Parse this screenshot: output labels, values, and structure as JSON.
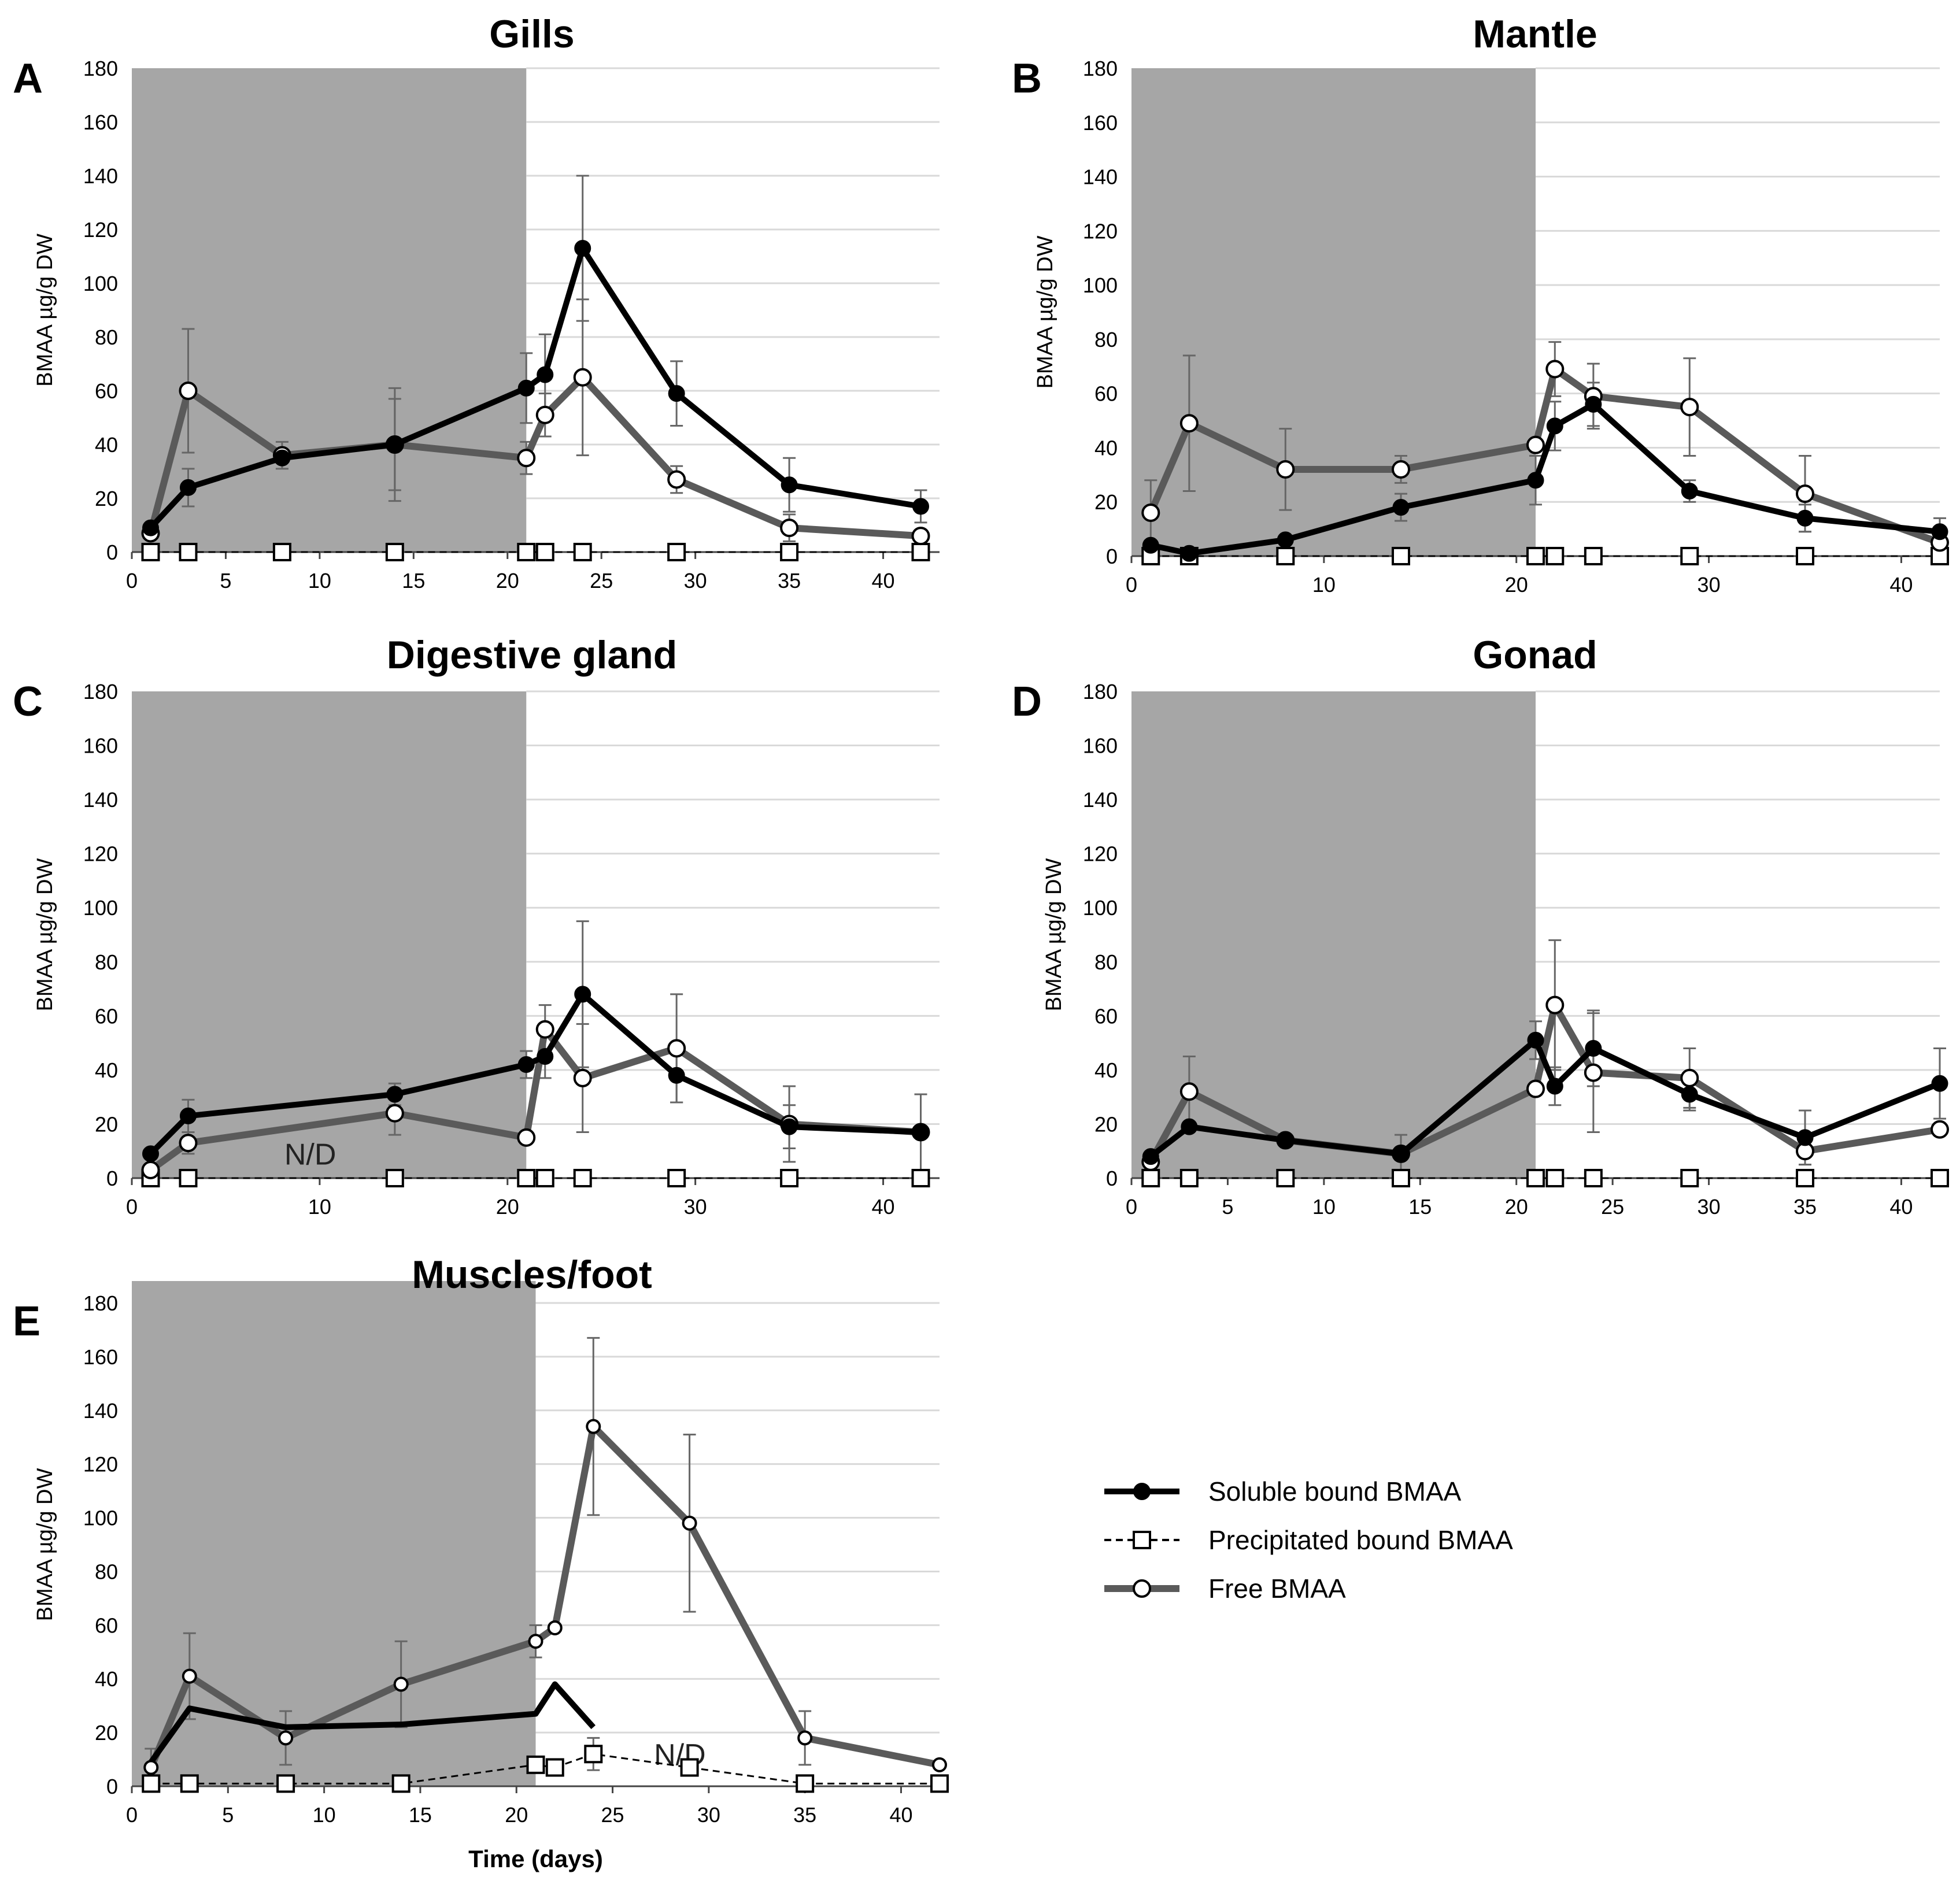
{
  "chart_data": [
    {
      "id": "A",
      "type": "line",
      "panel_letter": "A",
      "title": "Gills",
      "ylabel": "BMAA µg/g DW",
      "xlabel": "",
      "ylim": [
        0,
        180
      ],
      "yticks": [
        0,
        20,
        40,
        60,
        80,
        100,
        120,
        140,
        160,
        180
      ],
      "xlim": [
        0,
        43
      ],
      "xticks": [
        0,
        5,
        10,
        15,
        20,
        25,
        30,
        35,
        40
      ],
      "shaded_range": [
        0,
        21
      ],
      "series": [
        {
          "name": "Soluble bound BMAA",
          "style": "soluble",
          "x": [
            1,
            3,
            8,
            14,
            21,
            22,
            24,
            29,
            35,
            42
          ],
          "values": [
            9,
            24,
            35,
            40,
            61,
            66,
            113,
            59,
            25,
            17
          ],
          "err": [
            0,
            7,
            0,
            21,
            13,
            15,
            27,
            12,
            10,
            6
          ]
        },
        {
          "name": "Precipitated bound BMAA",
          "style": "precip",
          "x": [
            1,
            3,
            8,
            14,
            21,
            22,
            24,
            29,
            35,
            42
          ],
          "values": [
            0,
            0,
            0,
            0,
            0,
            0,
            0,
            0,
            0,
            0
          ],
          "err": [
            0,
            0,
            0,
            0,
            0,
            0,
            0,
            0,
            0,
            0
          ]
        },
        {
          "name": "Free BMAA",
          "style": "free",
          "x": [
            1,
            3,
            8,
            14,
            21,
            22,
            24,
            29,
            35,
            42
          ],
          "values": [
            7,
            60,
            36,
            40,
            35,
            51,
            65,
            27,
            9,
            6
          ],
          "err": [
            0,
            23,
            5,
            17,
            6,
            8,
            29,
            5,
            5,
            0
          ]
        }
      ]
    },
    {
      "id": "B",
      "type": "line",
      "panel_letter": "B",
      "title": "Mantle",
      "ylabel": "BMAA µg/g DW",
      "xlabel": "",
      "ylim": [
        0,
        180
      ],
      "yticks": [
        0,
        20,
        40,
        60,
        80,
        100,
        120,
        140,
        160,
        180
      ],
      "xlim": [
        0,
        42
      ],
      "xticks": [
        0,
        10,
        20,
        30,
        40
      ],
      "shaded_range": [
        0,
        21
      ],
      "series": [
        {
          "name": "Soluble bound BMAA",
          "style": "soluble",
          "x": [
            1,
            3,
            8,
            14,
            21,
            22,
            24,
            29,
            35,
            42
          ],
          "values": [
            4,
            1,
            6,
            18,
            28,
            48,
            56,
            24,
            14,
            9
          ],
          "err": [
            0,
            0,
            0,
            5,
            9,
            9,
            8,
            4,
            5,
            5
          ]
        },
        {
          "name": "Precipitated bound BMAA",
          "style": "precip",
          "x": [
            1,
            3,
            8,
            14,
            21,
            22,
            24,
            29,
            35,
            42
          ],
          "values": [
            0,
            0,
            0,
            0,
            0,
            0,
            0,
            0,
            0,
            0
          ],
          "err": [
            0,
            0,
            0,
            0,
            0,
            0,
            0,
            0,
            0,
            0
          ]
        },
        {
          "name": "Free BMAA",
          "style": "free",
          "x": [
            1,
            3,
            8,
            14,
            21,
            22,
            24,
            29,
            35,
            42
          ],
          "values": [
            16,
            49,
            32,
            32,
            41,
            69,
            59,
            55,
            23,
            5
          ],
          "err": [
            12,
            25,
            15,
            5,
            0,
            10,
            12,
            18,
            14,
            0
          ]
        }
      ]
    },
    {
      "id": "C",
      "type": "line",
      "panel_letter": "C",
      "title": "Digestive gland",
      "ylabel": "BMAA µg/g DW",
      "xlabel": "",
      "ylim": [
        0,
        180
      ],
      "yticks": [
        0,
        20,
        40,
        60,
        80,
        100,
        120,
        140,
        160,
        180
      ],
      "xlim": [
        0,
        43
      ],
      "xticks": [
        0,
        10,
        20,
        30,
        40
      ],
      "shaded_range": [
        0,
        21
      ],
      "annotation": "N/D",
      "annotation_at": [
        9.5,
        5
      ],
      "series": [
        {
          "name": "Soluble bound BMAA",
          "style": "soluble",
          "x": [
            1,
            3,
            14,
            21,
            22,
            24,
            29,
            35,
            42
          ],
          "values": [
            9,
            23,
            31,
            42,
            45,
            68,
            38,
            19,
            17
          ],
          "err": [
            0,
            6,
            4,
            5,
            8,
            27,
            10,
            8,
            14
          ]
        },
        {
          "name": "Precipitated bound BMAA",
          "style": "precip",
          "x": [
            1,
            3,
            14,
            21,
            22,
            24,
            29,
            35,
            42
          ],
          "values": [
            0,
            0,
            0,
            0,
            0,
            0,
            0,
            0,
            0
          ],
          "err": [
            0,
            0,
            0,
            0,
            0,
            0,
            0,
            0,
            0
          ]
        },
        {
          "name": "Free BMAA",
          "style": "free",
          "x": [
            1,
            3,
            14,
            21,
            22,
            24,
            29,
            35,
            42
          ],
          "values": [
            3,
            13,
            24,
            15,
            55,
            37,
            48,
            20,
            17
          ],
          "err": [
            0,
            4,
            8,
            0,
            9,
            20,
            20,
            14,
            0
          ]
        }
      ]
    },
    {
      "id": "D",
      "type": "line",
      "panel_letter": "D",
      "title": "Gonad",
      "ylabel": "BMAA µg/g DW",
      "xlabel": "",
      "ylim": [
        0,
        180
      ],
      "yticks": [
        0,
        20,
        40,
        60,
        80,
        100,
        120,
        140,
        160,
        180
      ],
      "xlim": [
        0,
        42
      ],
      "xticks": [
        0,
        5,
        10,
        15,
        20,
        25,
        30,
        35,
        40
      ],
      "shaded_range": [
        0,
        21
      ],
      "series": [
        {
          "name": "Soluble bound BMAA",
          "style": "soluble",
          "x": [
            1,
            3,
            8,
            14,
            21,
            22,
            24,
            29,
            35,
            42
          ],
          "values": [
            8,
            19,
            14,
            9,
            51,
            34,
            48,
            31,
            15,
            35
          ],
          "err": [
            0,
            0,
            0,
            0,
            7,
            7,
            14,
            6,
            10,
            13
          ]
        },
        {
          "name": "Precipitated bound BMAA",
          "style": "precip",
          "x": [
            1,
            3,
            8,
            14,
            21,
            22,
            24,
            29,
            35,
            42
          ],
          "values": [
            0,
            0,
            0,
            0,
            0,
            0,
            0,
            0,
            0,
            0
          ],
          "err": [
            0,
            0,
            0,
            0,
            0,
            0,
            0,
            0,
            0,
            0
          ]
        },
        {
          "name": "Free BMAA",
          "style": "free",
          "x": [
            1,
            3,
            8,
            14,
            21,
            22,
            24,
            29,
            35,
            42
          ],
          "values": [
            6,
            32,
            14,
            9,
            33,
            64,
            39,
            37,
            10,
            18
          ],
          "err": [
            0,
            13,
            0,
            7,
            0,
            24,
            22,
            11,
            5,
            0
          ]
        }
      ]
    },
    {
      "id": "E",
      "type": "line",
      "panel_letter": "E",
      "title": "Muscles/foot",
      "ylabel": "BMAA µg/g DW",
      "xlabel": "Time (days)",
      "ylim": [
        0,
        180
      ],
      "yticks": [
        0,
        20,
        40,
        60,
        80,
        100,
        120,
        140,
        160,
        180
      ],
      "xlim": [
        0,
        42
      ],
      "xticks": [
        0,
        5,
        10,
        15,
        20,
        25,
        30,
        35,
        40
      ],
      "shaded_range": [
        0,
        21
      ],
      "annotation": "N/D",
      "annotation_at": [
        28.5,
        8
      ],
      "series": [
        {
          "name": "Soluble bound BMAA",
          "style": "soluble",
          "x": [
            1,
            3,
            8,
            14,
            21,
            22,
            24
          ],
          "values": [
            9,
            29,
            22,
            23,
            27,
            38,
            22
          ],
          "err": [
            0,
            0,
            0,
            0,
            0,
            0,
            0
          ]
        },
        {
          "name": "Precipitated bound BMAA",
          "style": "precip",
          "x": [
            1,
            3,
            8,
            14,
            21,
            22,
            24,
            29,
            35,
            42
          ],
          "values": [
            1,
            1,
            1,
            1,
            8,
            7,
            12,
            7,
            1,
            1
          ],
          "err": [
            0,
            0,
            0,
            0,
            0,
            0,
            6,
            0,
            0,
            0
          ]
        },
        {
          "name": "Free BMAA",
          "style": "free",
          "x": [
            1,
            3,
            8,
            14,
            21,
            22,
            24,
            29,
            35,
            42
          ],
          "values": [
            7,
            41,
            18,
            38,
            54,
            59,
            134,
            98,
            18,
            8
          ],
          "err": [
            7,
            16,
            10,
            16,
            6,
            0,
            33,
            33,
            10,
            0
          ]
        }
      ]
    }
  ],
  "legend": {
    "items": [
      {
        "label": "Soluble bound BMAA",
        "style": "soluble"
      },
      {
        "label": "Precipitated bound BMAA",
        "style": "precip"
      },
      {
        "label": "Free BMAA",
        "style": "free"
      }
    ]
  },
  "colors": {
    "shade": "#a6a6a6",
    "grid": "#d9d9d9",
    "soluble": "#000000",
    "free": "#5a5a5a",
    "precip": "#000000",
    "errorbar": "#666666"
  }
}
